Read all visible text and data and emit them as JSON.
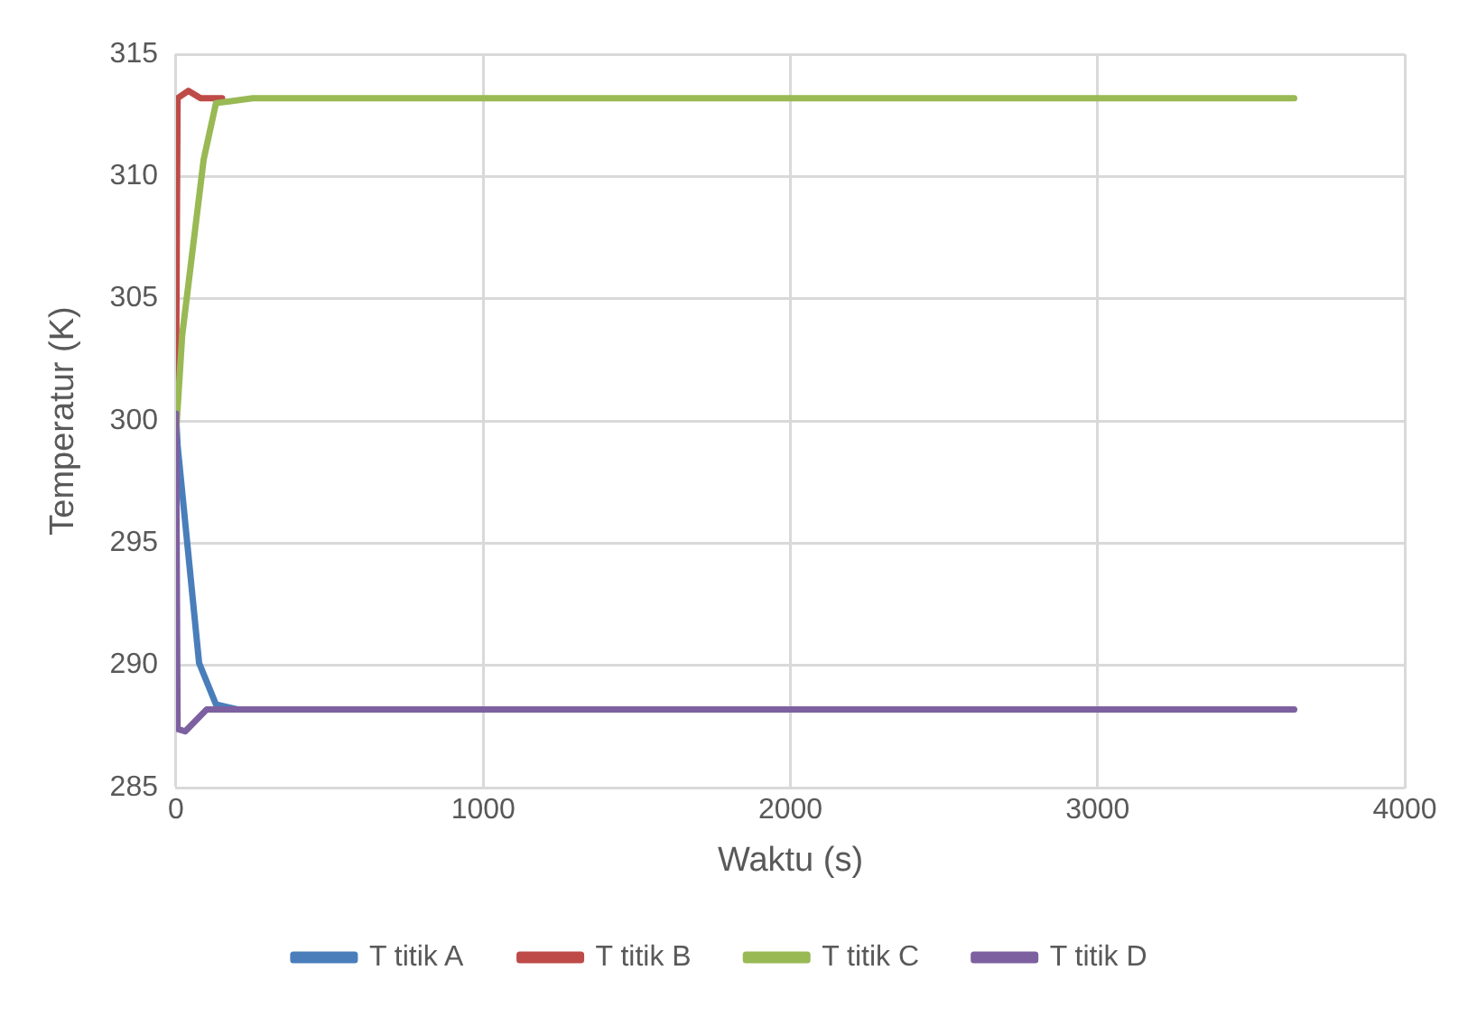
{
  "chart_data": {
    "type": "line",
    "xlabel": "Waktu (s)",
    "ylabel": "Temperatur (K)",
    "xlim": [
      0,
      4000
    ],
    "xticks": [
      0,
      1000,
      2000,
      3000,
      4000
    ],
    "ylim": [
      285,
      315
    ],
    "yticks": [
      285,
      290,
      295,
      300,
      305,
      310,
      315
    ],
    "grid": true,
    "legend": "bottom",
    "marker": "none",
    "line_style": "solid",
    "series": [
      {
        "name": "T titik A",
        "color": "#4a7ebb",
        "x": [
          0,
          5,
          75,
          130,
          200
        ],
        "values": [
          300.3,
          299.0,
          290.1,
          288.4,
          288.2
        ]
      },
      {
        "name": "T titik B",
        "color": "#be4b48",
        "x": [
          0,
          5,
          40,
          80,
          150
        ],
        "values": [
          301.7,
          313.2,
          313.5,
          313.2,
          313.2
        ]
      },
      {
        "name": "T titik C",
        "color": "#98b954",
        "x": [
          0,
          20,
          90,
          130,
          250,
          1000,
          2000,
          3000,
          3640
        ],
        "values": [
          299.5,
          303.5,
          310.7,
          313.0,
          313.2,
          313.2,
          313.2,
          313.2,
          313.2
        ]
      },
      {
        "name": "T titik D",
        "color": "#7d60a0",
        "x": [
          0,
          5,
          30,
          100,
          200,
          1000,
          2000,
          3000,
          3640
        ],
        "values": [
          300.3,
          287.4,
          287.3,
          288.2,
          288.2,
          288.2,
          288.2,
          288.2,
          288.2
        ]
      }
    ]
  }
}
